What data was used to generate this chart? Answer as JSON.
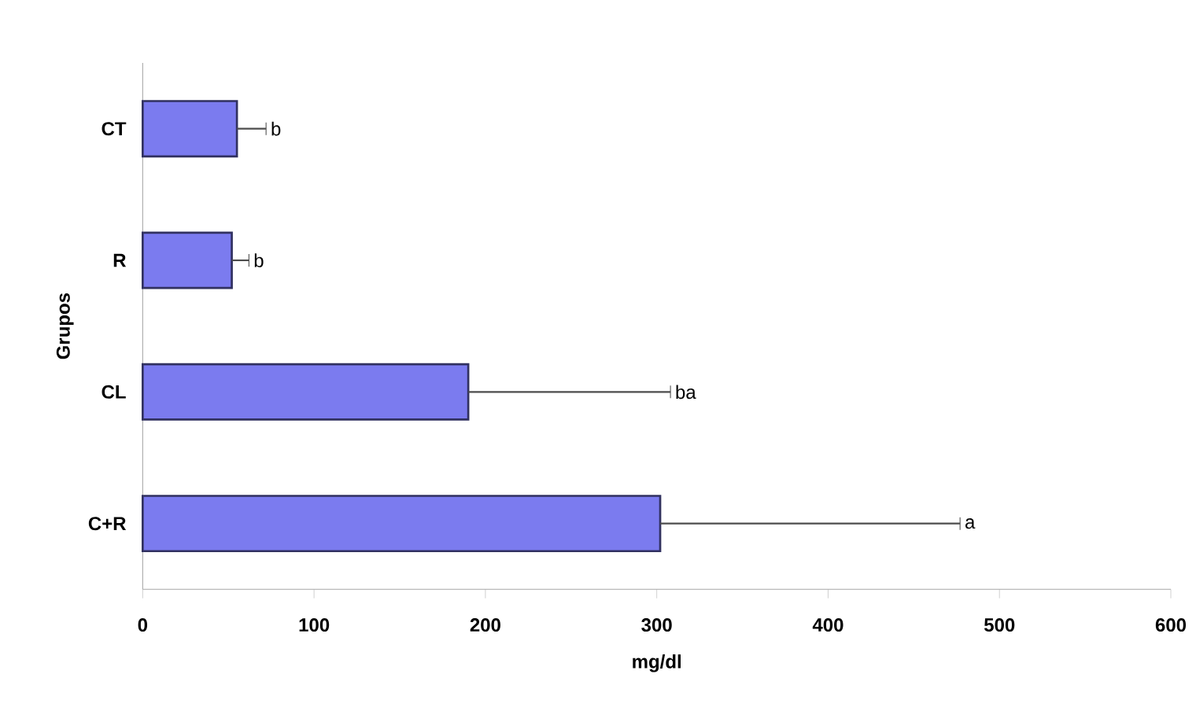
{
  "chart_data": {
    "type": "bar",
    "orientation": "horizontal",
    "xlabel": "mg/dl",
    "ylabel": "Grupos",
    "categories": [
      "CT",
      "R",
      "CL",
      "C+R"
    ],
    "values": [
      55,
      52,
      190,
      302
    ],
    "errors": [
      [
        55,
        72
      ],
      [
        52,
        62
      ],
      [
        190,
        308
      ],
      [
        302,
        477
      ]
    ],
    "color": "#7b7bef",
    "xlim": [
      0,
      600
    ],
    "xticks": [
      0,
      100,
      200,
      300,
      400,
      500,
      600
    ],
    "grid": false,
    "annotations": [
      "b",
      "b",
      "ba",
      "a"
    ]
  }
}
